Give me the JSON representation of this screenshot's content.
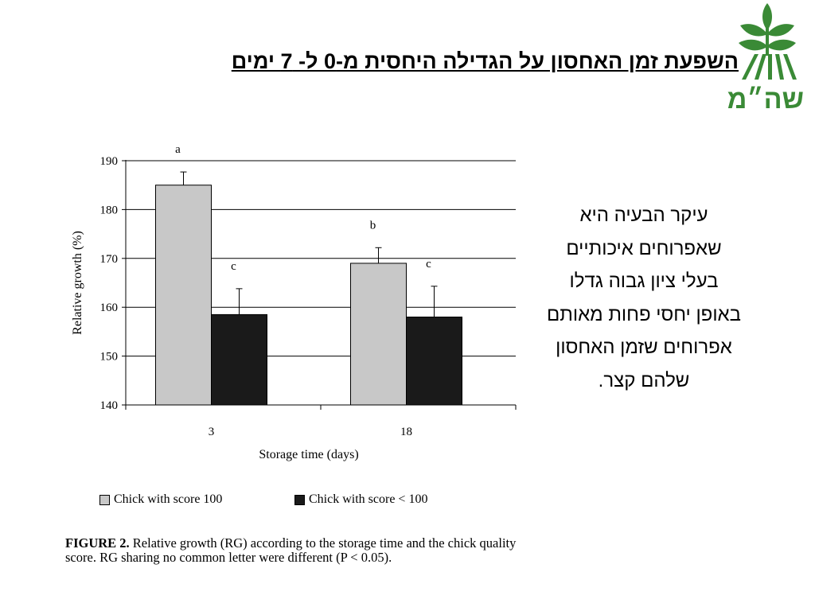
{
  "slide": {
    "title": "השפעת זמן האחסון על הגדילה היחסית מ-0 ל- 7 ימים",
    "logo_text": "שה״מ",
    "side_text": [
      "עיקר הבעיה היא",
      "שאפרוחים איכותיים",
      "בעלי ציון גבוה גדלו",
      "באופן יחסי פחות מאותם",
      "אפרוחים שזמן האחסון",
      "שלהם קצר."
    ]
  },
  "colors": {
    "series_light": "#c8c8c8",
    "series_dark": "#1a1a1a",
    "logo_green": "#3a8a36"
  },
  "chart_data": {
    "type": "bar",
    "categories": [
      "3",
      "18"
    ],
    "series": [
      {
        "name": "Chick with score 100",
        "values": [
          185,
          169
        ],
        "errors": [
          2.7,
          3.2
        ],
        "letters": [
          "a",
          "b"
        ]
      },
      {
        "name": "Chick with score < 100",
        "values": [
          158.5,
          158
        ],
        "errors": [
          5.3,
          6.3
        ],
        "letters": [
          "c",
          "c"
        ]
      }
    ],
    "xlabel": "Storage time (days)",
    "ylabel": "Relative growth (%)",
    "ylim": [
      140,
      190
    ],
    "yticks": [
      140,
      150,
      160,
      170,
      180,
      190
    ],
    "grid": true,
    "legend_position": "bottom"
  },
  "caption": {
    "label": "FIGURE 2.",
    "text": " Relative growth (RG) according to the storage time and the chick quality score. RG sharing no common letter were different (P < 0.05)."
  }
}
